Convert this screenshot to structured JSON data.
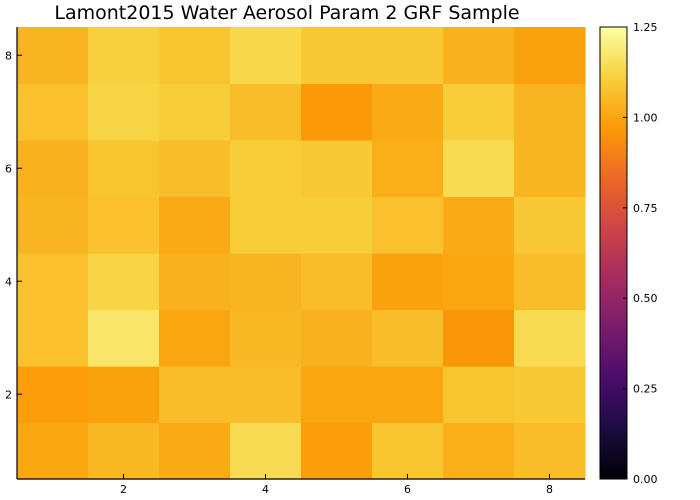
{
  "chart_data": {
    "type": "heatmap",
    "title": "Lamont2015 Water Aerosol Param 2 GRF Sample",
    "xlabel": "",
    "ylabel": "",
    "x": [
      1,
      2,
      3,
      4,
      5,
      6,
      7,
      8
    ],
    "y": [
      1,
      2,
      3,
      4,
      5,
      6,
      7,
      8
    ],
    "xlim": [
      0.5,
      8.5
    ],
    "ylim": [
      0.5,
      8.5
    ],
    "x_ticks": [
      2,
      4,
      6,
      8
    ],
    "y_ticks": [
      2,
      4,
      6,
      8
    ],
    "x_tick_labels": [
      "2",
      "4",
      "6",
      "8"
    ],
    "y_tick_labels": [
      "2",
      "4",
      "6",
      "8"
    ],
    "z": [
      [
        1.0,
        1.05,
        1.01,
        1.14,
        0.98,
        1.08,
        1.02,
        1.06
      ],
      [
        0.98,
        0.99,
        1.06,
        1.06,
        1.0,
        1.0,
        1.08,
        1.09
      ],
      [
        1.07,
        1.17,
        1.0,
        1.05,
        1.03,
        1.06,
        0.96,
        1.14
      ],
      [
        1.07,
        1.12,
        1.03,
        1.04,
        1.06,
        0.99,
        1.0,
        1.06
      ],
      [
        1.04,
        1.07,
        1.01,
        1.1,
        1.1,
        1.07,
        1.01,
        1.09
      ],
      [
        1.03,
        1.08,
        1.06,
        1.1,
        1.09,
        1.02,
        1.14,
        1.04
      ],
      [
        1.07,
        1.12,
        1.1,
        1.06,
        0.97,
        1.01,
        1.1,
        1.04
      ],
      [
        1.04,
        1.11,
        1.08,
        1.13,
        1.09,
        1.09,
        1.03,
        0.99
      ]
    ],
    "colorbar": {
      "range": [
        0,
        1.25
      ],
      "ticks": [
        0.0,
        0.25,
        0.5,
        0.75,
        1.0,
        1.25
      ],
      "tick_labels": [
        "0.00",
        "0.25",
        "0.50",
        "0.75",
        "1.00",
        "1.25"
      ],
      "colormap": "inferno",
      "colormap_stops": [
        "#000004",
        "#1b0c41",
        "#4a0c6b",
        "#781c6d",
        "#a52c60",
        "#cf4446",
        "#ed6925",
        "#fb9b06",
        "#f7d13d",
        "#fcffa4"
      ]
    },
    "grid": false,
    "legend": "colorbar-right"
  }
}
